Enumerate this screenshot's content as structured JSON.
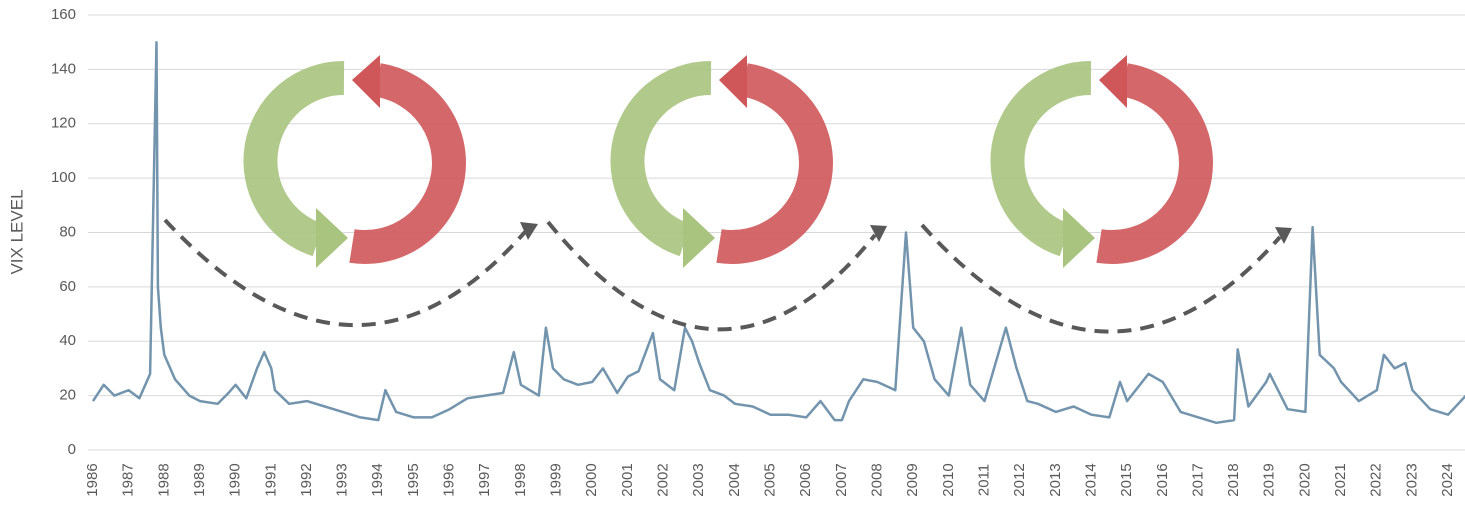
{
  "chart_data": {
    "type": "line",
    "y_label": "VIX LEVEL",
    "ylim": [
      0,
      160
    ],
    "yticks": [
      0,
      20,
      40,
      60,
      80,
      100,
      120,
      140,
      160
    ],
    "xlim": [
      1986,
      2024.75
    ],
    "xticks": [
      1986,
      1987,
      1988,
      1989,
      1990,
      1991,
      1992,
      1993,
      1994,
      1995,
      1996,
      1997,
      1998,
      1999,
      2000,
      2001,
      2002,
      2003,
      2004,
      2005,
      2006,
      2007,
      2008,
      2009,
      2010,
      2011,
      2012,
      2013,
      2014,
      2015,
      2016,
      2017,
      2018,
      2019,
      2020,
      2021,
      2022,
      2023,
      2024
    ],
    "grid": true,
    "series": [
      {
        "name": "VIX",
        "color": "#7394ad",
        "x": [
          1986.0,
          1986.3,
          1986.6,
          1987.0,
          1987.3,
          1987.6,
          1987.78,
          1987.82,
          1987.9,
          1988.0,
          1988.3,
          1988.7,
          1989.0,
          1989.5,
          1989.8,
          1990.0,
          1990.3,
          1990.6,
          1990.8,
          1991.0,
          1991.1,
          1991.5,
          1992.0,
          1992.5,
          1993.0,
          1993.5,
          1994.0,
          1994.2,
          1994.5,
          1995.0,
          1995.5,
          1996.0,
          1996.5,
          1997.0,
          1997.5,
          1997.8,
          1998.0,
          1998.5,
          1998.7,
          1998.9,
          1999.2,
          1999.6,
          2000.0,
          2000.3,
          2000.7,
          2001.0,
          2001.3,
          2001.7,
          2001.9,
          2002.3,
          2002.6,
          2002.8,
          2003.0,
          2003.3,
          2003.7,
          2004.0,
          2004.5,
          2005.0,
          2005.5,
          2006.0,
          2006.4,
          2006.8,
          2007.0,
          2007.2,
          2007.6,
          2008.0,
          2008.5,
          2008.8,
          2009.0,
          2009.3,
          2009.6,
          2010.0,
          2010.35,
          2010.6,
          2011.0,
          2011.6,
          2011.9,
          2012.2,
          2012.5,
          2013.0,
          2013.5,
          2014.0,
          2014.5,
          2014.8,
          2015.0,
          2015.6,
          2016.0,
          2016.5,
          2017.0,
          2017.5,
          2018.0,
          2018.1,
          2018.4,
          2018.9,
          2019.0,
          2019.5,
          2020.0,
          2020.2,
          2020.4,
          2020.8,
          2021.0,
          2021.5,
          2022.0,
          2022.2,
          2022.5,
          2022.8,
          2023.0,
          2023.5,
          2024.0,
          2024.5,
          2024.7
        ],
        "values": [
          18,
          24,
          20,
          22,
          19,
          28,
          150,
          60,
          45,
          35,
          26,
          20,
          18,
          17,
          21,
          24,
          19,
          30,
          36,
          30,
          22,
          17,
          18,
          16,
          14,
          12,
          11,
          22,
          14,
          12,
          12,
          15,
          19,
          20,
          21,
          36,
          24,
          20,
          45,
          30,
          26,
          24,
          25,
          30,
          21,
          27,
          29,
          43,
          26,
          22,
          45,
          40,
          32,
          22,
          20,
          17,
          16,
          13,
          13,
          12,
          18,
          11,
          11,
          18,
          26,
          25,
          22,
          80,
          45,
          40,
          26,
          20,
          45,
          24,
          18,
          45,
          30,
          18,
          17,
          14,
          16,
          13,
          12,
          25,
          18,
          28,
          25,
          14,
          12,
          10,
          11,
          37,
          16,
          25,
          28,
          15,
          14,
          82,
          35,
          30,
          25,
          18,
          22,
          35,
          30,
          32,
          22,
          15,
          13,
          20,
          14
        ]
      }
    ]
  }
}
